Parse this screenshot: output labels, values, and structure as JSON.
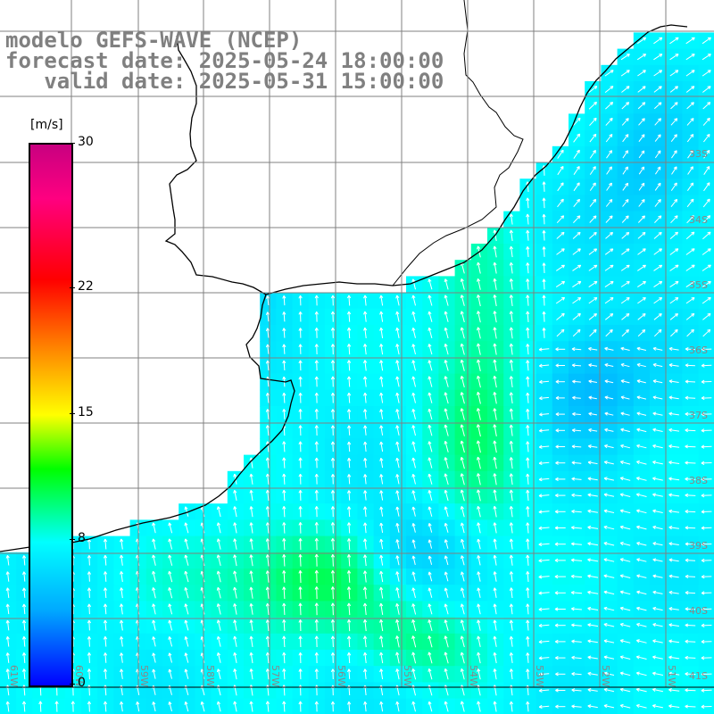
{
  "header": {
    "model": "modelo GEFS-WAVE (NCEP)",
    "forecast": "forecast date: 2025-05-24 18:00:00",
    "valid": "   valid date: 2025-05-31 15:00:00"
  },
  "colorbar": {
    "units": "[m/s]",
    "ticks": [
      {
        "label": "30",
        "value": 30
      },
      {
        "label": "22",
        "value": 22
      },
      {
        "label": "15",
        "value": 15
      },
      {
        "label": "8",
        "value": 8
      },
      {
        "label": "0",
        "value": 0
      }
    ],
    "colors": [
      "#0000ff",
      "#00aaff",
      "#00ffff",
      "#00ff00",
      "#ffff00",
      "#ff8800",
      "#ff0000",
      "#c80080"
    ]
  },
  "map": {
    "lon_labels": [
      "61W",
      "60W",
      "59W",
      "58W",
      "57W",
      "56W",
      "55W",
      "54W",
      "53W",
      "52W",
      "51W"
    ],
    "lat_labels": [
      "33S",
      "34S",
      "35S",
      "36S",
      "37S",
      "38S",
      "39S",
      "40S",
      "41S"
    ],
    "arrow_color": "#ffffff",
    "land_color": "#ffffff",
    "coast_color": "#000000",
    "grid_color": "#808080"
  }
}
